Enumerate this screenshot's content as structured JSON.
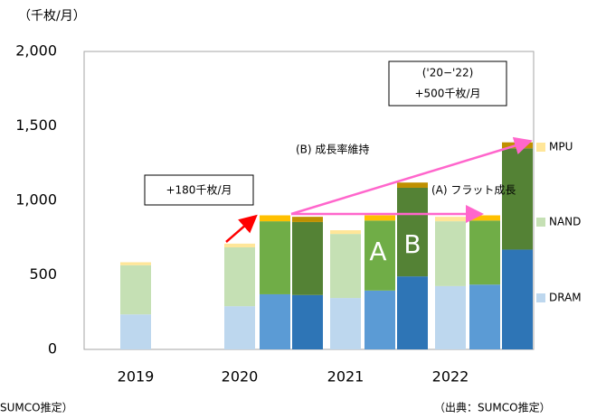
{
  "chart_data": {
    "type": "stacked_bar",
    "y_unit_label": "（千枚/月）",
    "categories": [
      "2019",
      "2020",
      null,
      null,
      "2021",
      null,
      null,
      "2022",
      null,
      null
    ],
    "series": [
      {
        "name": "DRAM",
        "color": "#bdd7ee",
        "colors": [
          "#bdd7ee",
          "#bdd7ee",
          "#5b9bd5",
          "#2e75b6",
          "#bdd7ee",
          "#5b9bd5",
          "#2e75b6",
          "#bdd7ee",
          "#5b9bd5",
          "#2e75b6"
        ],
        "values": [
          235,
          290,
          370,
          365,
          345,
          395,
          490,
          425,
          435,
          670
        ]
      },
      {
        "name": "NAND",
        "color": "#c5e0b4",
        "colors": [
          "#c5e0b4",
          "#c5e0b4",
          "#70ad47",
          "#548235",
          "#c5e0b4",
          "#70ad47",
          "#548235",
          "#c5e0b4",
          "#70ad47",
          "#548235"
        ],
        "values": [
          330,
          395,
          490,
          490,
          430,
          470,
          595,
          435,
          430,
          680
        ]
      },
      {
        "name": "MPU",
        "color": "#ffe699",
        "colors": [
          "#ffe699",
          "#ffe699",
          "#ffc000",
          "#bf9000",
          "#ffe699",
          "#ffc000",
          "#bf9000",
          "#ffe699",
          "#ffc000",
          "#bf9000"
        ],
        "values": [
          20,
          25,
          40,
          35,
          25,
          35,
          35,
          30,
          35,
          40
        ]
      }
    ],
    "ylim": [
      0,
      2000
    ],
    "yticks": [
      0,
      500,
      {
        "value": 1000,
        "label": "1,000"
      },
      {
        "value": 1500,
        "label": "1,500"
      },
      {
        "value": 2000,
        "label": "2,000"
      }
    ],
    "annotations": {
      "range_box_line1": "('20−'22)",
      "range_box_line2": "+500千枚/月",
      "growth_b": "(B) 成長率維持",
      "growth_a": "(A) フラット成長",
      "increase_box": "+180千枚/月",
      "letter_a": "A",
      "letter_b": "B",
      "source_left": "SUMCO推定）",
      "source_right": "（出典：SUMCO推定）"
    }
  }
}
